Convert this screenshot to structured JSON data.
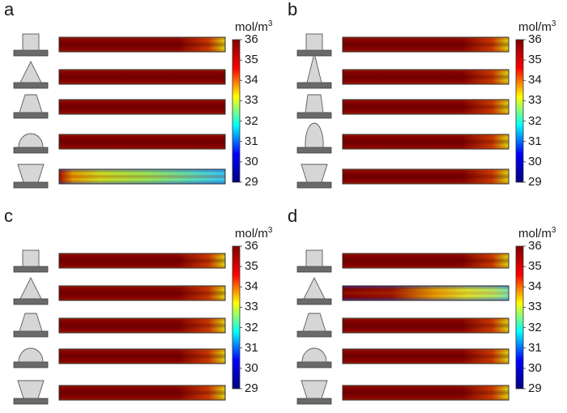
{
  "figure": {
    "unit_base": "mol/m",
    "unit_exp": "3",
    "colorbar_ticks": [
      "36",
      "35",
      "34",
      "33",
      "32",
      "31",
      "30",
      "29"
    ],
    "colorbar_range": [
      29,
      36
    ],
    "colormap": [
      "#00007f",
      "#0000ff",
      "#00ffff",
      "#ffff00",
      "#ff0000",
      "#7f0000"
    ]
  },
  "panels": [
    {
      "label": "a",
      "rows": [
        {
          "shape": "square-pillar",
          "field": "end-yellow"
        },
        {
          "shape": "triangle",
          "field": "uniform"
        },
        {
          "shape": "trapezoid",
          "field": "uniform"
        },
        {
          "shape": "dome",
          "field": "uniform"
        },
        {
          "shape": "inverted-trapezoid",
          "field": "depleted"
        }
      ]
    },
    {
      "label": "b",
      "rows": [
        {
          "shape": "square-pillar",
          "field": "end-yellow"
        },
        {
          "shape": "tall-cone",
          "field": "end-yellow"
        },
        {
          "shape": "narrow-trapezoid",
          "field": "end-yellow"
        },
        {
          "shape": "tall-dome",
          "field": "end-yellow"
        },
        {
          "shape": "inverted-trapezoid",
          "field": "end-yellow"
        }
      ]
    },
    {
      "label": "c",
      "rows": [
        {
          "shape": "square-pillar",
          "field": "end-yellow"
        },
        {
          "shape": "triangle",
          "field": "end-yellow"
        },
        {
          "shape": "trapezoid",
          "field": "end-yellow"
        },
        {
          "shape": "dome",
          "field": "end-yellow"
        },
        {
          "shape": "inverted-trapezoid",
          "field": "end-yellow"
        }
      ]
    },
    {
      "label": "d",
      "rows": [
        {
          "shape": "square-pillar",
          "field": "end-yellow"
        },
        {
          "shape": "triangle",
          "field": "mid-depleted"
        },
        {
          "shape": "trapezoid",
          "field": "end-yellow"
        },
        {
          "shape": "dome",
          "field": "end-yellow"
        },
        {
          "shape": "inverted-trapezoid",
          "field": "end-yellow"
        }
      ]
    }
  ]
}
